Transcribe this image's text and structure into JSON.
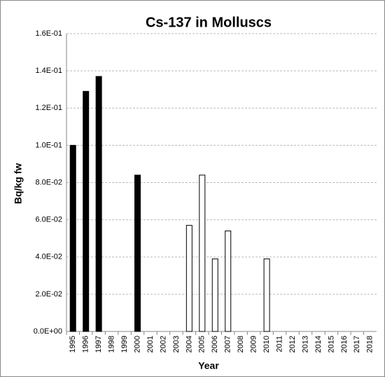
{
  "chart_data": {
    "type": "bar",
    "title": "Cs-137 in Molluscs",
    "x_label": "Year",
    "y_label": "Bq/kg fw",
    "categories": [
      "1995",
      "1996",
      "1997",
      "1998",
      "1999",
      "2000",
      "2001",
      "2002",
      "2003",
      "2004",
      "2005",
      "2006",
      "2007",
      "2008",
      "2009",
      "2010",
      "2011",
      "2012",
      "2013",
      "2014",
      "2015",
      "2016",
      "2017",
      "2018"
    ],
    "values": [
      0.1,
      0.129,
      0.137,
      null,
      null,
      0.084,
      null,
      null,
      null,
      0.057,
      0.084,
      0.039,
      0.054,
      null,
      null,
      0.039,
      null,
      null,
      null,
      null,
      null,
      null,
      null,
      null
    ],
    "colors": [
      "#000000",
      "#000000",
      "#000000",
      null,
      null,
      "#000000",
      null,
      null,
      null,
      "#ffffff",
      "#ffffff",
      "#ffffff",
      "#ffffff",
      null,
      null,
      "#ffffff",
      null,
      null,
      null,
      null,
      null,
      null,
      null,
      null
    ],
    "ylim": [
      0,
      0.16
    ],
    "yticks": [
      {
        "value": 0,
        "label": "0.0E+00"
      },
      {
        "value": 0.02,
        "label": "2.0E-02"
      },
      {
        "value": 0.04,
        "label": "4.0E-02"
      },
      {
        "value": 0.06,
        "label": "6.0E-02"
      },
      {
        "value": 0.08,
        "label": "8.0E-02"
      },
      {
        "value": 0.1,
        "label": "1.0E-01"
      },
      {
        "value": 0.12,
        "label": "1.2E-01"
      },
      {
        "value": 0.14,
        "label": "1.4E-01"
      },
      {
        "value": 0.16,
        "label": "1.6E-01"
      }
    ],
    "grid": true
  }
}
